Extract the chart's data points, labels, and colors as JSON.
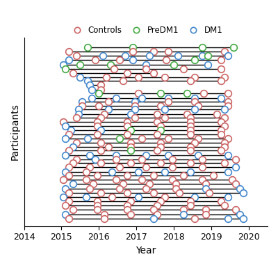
{
  "title": "",
  "xlabel": "Year",
  "ylabel": "Participants",
  "xlim": [
    2014,
    2020.5
  ],
  "xticks": [
    2014,
    2015,
    2016,
    2017,
    2018,
    2019,
    2020
  ],
  "colors": {
    "Controls": "#CC6666",
    "PreDM1": "#44AA44",
    "DM1": "#4488CC"
  },
  "participants": [
    {
      "y": 40,
      "points": [
        [
          2015.7,
          "PreDM1"
        ],
        [
          2016.9,
          "PreDM1"
        ],
        [
          2018.75,
          "PreDM1"
        ],
        [
          2019.6,
          "PreDM1"
        ]
      ]
    },
    {
      "y": 39,
      "points": [
        [
          2015.2,
          "Controls"
        ],
        [
          2016.9,
          "Controls"
        ],
        [
          2017.45,
          "Controls"
        ],
        [
          2017.85,
          "Controls"
        ],
        [
          2019.35,
          "Controls"
        ]
      ]
    },
    {
      "y": 38.2,
      "points": [
        [
          2015.4,
          "Controls"
        ],
        [
          2016.1,
          "DM1"
        ],
        [
          2016.7,
          "DM1"
        ],
        [
          2017.35,
          "DM1"
        ],
        [
          2018.1,
          "DM1"
        ],
        [
          2018.75,
          "DM1"
        ],
        [
          2018.9,
          "PreDM1"
        ],
        [
          2019.45,
          "DM1"
        ]
      ]
    },
    {
      "y": 37.3,
      "points": [
        [
          2015.2,
          "DM1"
        ],
        [
          2015.9,
          "Controls"
        ],
        [
          2016.55,
          "Controls"
        ],
        [
          2016.9,
          "DM1"
        ],
        [
          2017.8,
          "Controls"
        ],
        [
          2018.55,
          "PreDM1"
        ],
        [
          2019.25,
          "Controls"
        ]
      ]
    },
    {
      "y": 36.3,
      "points": [
        [
          2015.05,
          "DM1"
        ],
        [
          2015.5,
          "PreDM1"
        ],
        [
          2016.3,
          "PreDM1"
        ],
        [
          2017.25,
          "DM1"
        ],
        [
          2018.0,
          "PreDM1"
        ],
        [
          2018.9,
          "DM1"
        ]
      ]
    },
    {
      "y": 35.4,
      "points": [
        [
          2015.1,
          "PreDM1"
        ],
        [
          2016.4,
          "Controls"
        ],
        [
          2017.25,
          "Controls"
        ],
        [
          2018.25,
          "Controls"
        ],
        [
          2019.25,
          "Controls"
        ]
      ]
    },
    {
      "y": 34.6,
      "points": [
        [
          2015.3,
          "Controls"
        ],
        [
          2016.75,
          "Controls"
        ],
        [
          2017.45,
          "Controls"
        ]
      ]
    },
    {
      "y": 33.7,
      "points": [
        [
          2015.5,
          "DM1"
        ],
        [
          2016.2,
          "Controls"
        ],
        [
          2017.05,
          "Controls"
        ],
        [
          2017.75,
          "Controls"
        ],
        [
          2018.55,
          "Controls"
        ],
        [
          2019.35,
          "Controls"
        ]
      ]
    },
    {
      "y": 32.9,
      "points": [
        [
          2015.7,
          "DM1"
        ],
        [
          2016.65,
          "Controls"
        ],
        [
          2018.45,
          "Controls"
        ],
        [
          2019.25,
          "Controls"
        ]
      ]
    },
    {
      "y": 32.0,
      "points": [
        [
          2015.75,
          "DM1"
        ],
        [
          2016.05,
          "Controls"
        ]
      ]
    },
    {
      "y": 31.1,
      "points": [
        [
          2015.8,
          "DM1"
        ],
        [
          2016.05,
          "Controls"
        ]
      ]
    },
    {
      "y": 30.3,
      "points": [
        [
          2016.0,
          "PreDM1"
        ],
        [
          2017.05,
          "Controls"
        ],
        [
          2017.65,
          "PreDM1"
        ],
        [
          2018.35,
          "PreDM1"
        ],
        [
          2018.8,
          "Controls"
        ],
        [
          2019.45,
          "Controls"
        ]
      ]
    },
    {
      "y": 29.3,
      "points": [
        [
          2015.8,
          "DM1"
        ],
        [
          2016.45,
          "DM1"
        ],
        [
          2017.15,
          "DM1"
        ],
        [
          2017.85,
          "DM1"
        ],
        [
          2018.55,
          "DM1"
        ],
        [
          2019.25,
          "DM1"
        ]
      ]
    },
    {
      "y": 28.5,
      "points": [
        [
          2015.55,
          "DM1"
        ],
        [
          2016.25,
          "Controls"
        ],
        [
          2016.95,
          "DM1"
        ],
        [
          2017.85,
          "Controls"
        ],
        [
          2018.55,
          "Controls"
        ],
        [
          2019.45,
          "Controls"
        ]
      ]
    },
    {
      "y": 27.7,
      "points": [
        [
          2015.55,
          "Controls"
        ],
        [
          2016.0,
          "Controls"
        ],
        [
          2016.95,
          "Controls"
        ],
        [
          2017.65,
          "Controls"
        ],
        [
          2018.65,
          "Controls"
        ],
        [
          2019.45,
          "Controls"
        ]
      ]
    },
    {
      "y": 26.9,
      "points": [
        [
          2015.45,
          "DM1"
        ],
        [
          2016.25,
          "DM1"
        ],
        [
          2016.95,
          "DM1"
        ],
        [
          2017.75,
          "DM1"
        ],
        [
          2018.55,
          "DM1"
        ],
        [
          2019.35,
          "DM1"
        ]
      ]
    },
    {
      "y": 26.0,
      "points": [
        [
          2015.45,
          "DM1"
        ],
        [
          2016.15,
          "Controls"
        ],
        [
          2016.85,
          "DM1"
        ],
        [
          2017.55,
          "Controls"
        ],
        [
          2018.35,
          "Controls"
        ],
        [
          2019.15,
          "Controls"
        ]
      ]
    },
    {
      "y": 25.2,
      "points": [
        [
          2015.4,
          "Controls"
        ],
        [
          2016.05,
          "Controls"
        ],
        [
          2016.95,
          "Controls"
        ],
        [
          2017.75,
          "Controls"
        ],
        [
          2018.45,
          "Controls"
        ],
        [
          2019.35,
          "Controls"
        ]
      ]
    },
    {
      "y": 24.3,
      "points": [
        [
          2015.05,
          "Controls"
        ],
        [
          2015.95,
          "Controls"
        ],
        [
          2016.75,
          "Controls"
        ],
        [
          2017.55,
          "Controls"
        ],
        [
          2018.45,
          "Controls"
        ],
        [
          2019.25,
          "Controls"
        ]
      ]
    },
    {
      "y": 23.4,
      "points": [
        [
          2015.1,
          "DM1"
        ],
        [
          2015.95,
          "Controls"
        ],
        [
          2016.75,
          "Controls"
        ],
        [
          2017.65,
          "Controls"
        ],
        [
          2018.45,
          "Controls"
        ],
        [
          2019.35,
          "Controls"
        ]
      ]
    },
    {
      "y": 22.6,
      "points": [
        [
          2015.25,
          "DM1"
        ],
        [
          2016.05,
          "DM1"
        ],
        [
          2016.85,
          "PreDM1"
        ],
        [
          2017.65,
          "PreDM1"
        ],
        [
          2018.45,
          "Controls"
        ],
        [
          2019.25,
          "Controls"
        ]
      ]
    },
    {
      "y": 21.7,
      "points": [
        [
          2015.2,
          "Controls"
        ],
        [
          2015.95,
          "Controls"
        ],
        [
          2016.75,
          "Controls"
        ],
        [
          2017.55,
          "Controls"
        ],
        [
          2018.45,
          "Controls"
        ],
        [
          2019.25,
          "Controls"
        ]
      ]
    },
    {
      "y": 20.8,
      "points": [
        [
          2015.1,
          "DM1"
        ],
        [
          2015.7,
          "DM1"
        ],
        [
          2016.55,
          "PreDM1"
        ],
        [
          2017.15,
          "Controls"
        ],
        [
          2017.85,
          "Controls"
        ],
        [
          2018.65,
          "Controls"
        ],
        [
          2019.45,
          "Controls"
        ]
      ]
    },
    {
      "y": 20.0,
      "points": [
        [
          2015.4,
          "Controls"
        ],
        [
          2016.05,
          "Controls"
        ],
        [
          2016.85,
          "Controls"
        ],
        [
          2017.65,
          "Controls"
        ],
        [
          2018.55,
          "Controls"
        ],
        [
          2019.35,
          "Controls"
        ]
      ]
    },
    {
      "y": 19.1,
      "points": [
        [
          2015.3,
          "DM1"
        ],
        [
          2016.25,
          "Controls"
        ],
        [
          2016.85,
          "Controls"
        ],
        [
          2017.65,
          "Controls"
        ],
        [
          2018.45,
          "Controls"
        ],
        [
          2019.35,
          "Controls"
        ]
      ]
    },
    {
      "y": 18.3,
      "points": [
        [
          2015.2,
          "Controls"
        ],
        [
          2016.05,
          "Controls"
        ],
        [
          2016.85,
          "PreDM1"
        ],
        [
          2017.55,
          "Controls"
        ],
        [
          2018.45,
          "Controls"
        ],
        [
          2019.25,
          "Controls"
        ]
      ]
    },
    {
      "y": 17.4,
      "points": [
        [
          2015.1,
          "DM1"
        ],
        [
          2015.75,
          "DM1"
        ],
        [
          2016.45,
          "DM1"
        ],
        [
          2017.25,
          "DM1"
        ],
        [
          2017.85,
          "DM1"
        ],
        [
          2018.65,
          "DM1"
        ],
        [
          2019.45,
          "DM1"
        ]
      ]
    },
    {
      "y": 16.5,
      "points": [
        [
          2015.4,
          "Controls"
        ],
        [
          2015.9,
          "DM1"
        ],
        [
          2016.45,
          "Controls"
        ],
        [
          2017.15,
          "Controls"
        ],
        [
          2017.95,
          "Controls"
        ],
        [
          2018.75,
          "Controls"
        ],
        [
          2019.65,
          "Controls"
        ]
      ]
    },
    {
      "y": 15.7,
      "points": [
        [
          2015.3,
          "Controls"
        ],
        [
          2016.05,
          "Controls"
        ],
        [
          2016.85,
          "Controls"
        ],
        [
          2017.65,
          "Controls"
        ],
        [
          2018.45,
          "Controls"
        ],
        [
          2019.35,
          "Controls"
        ]
      ]
    },
    {
      "y": 14.8,
      "points": [
        [
          2015.2,
          "Controls"
        ],
        [
          2015.75,
          "Controls"
        ],
        [
          2016.55,
          "Controls"
        ],
        [
          2017.25,
          "Controls"
        ],
        [
          2017.95,
          "Controls"
        ],
        [
          2018.75,
          "Controls"
        ],
        [
          2019.65,
          "DM1"
        ]
      ]
    },
    {
      "y": 13.9,
      "points": [
        [
          2015.1,
          "DM1"
        ],
        [
          2015.65,
          "Controls"
        ],
        [
          2016.35,
          "DM1"
        ],
        [
          2017.05,
          "DM1"
        ],
        [
          2017.75,
          "DM1"
        ],
        [
          2018.45,
          "DM1"
        ],
        [
          2019.45,
          "DM1"
        ]
      ]
    },
    {
      "y": 13.1,
      "points": [
        [
          2015.2,
          "Controls"
        ],
        [
          2015.95,
          "Controls"
        ],
        [
          2016.75,
          "Controls"
        ],
        [
          2017.45,
          "Controls"
        ],
        [
          2018.25,
          "Controls"
        ],
        [
          2019.05,
          "Controls"
        ]
      ]
    },
    {
      "y": 12.2,
      "points": [
        [
          2015.05,
          "Controls"
        ],
        [
          2015.65,
          "Controls"
        ],
        [
          2016.45,
          "Controls"
        ],
        [
          2017.15,
          "Controls"
        ],
        [
          2017.95,
          "Controls"
        ],
        [
          2018.75,
          "Controls"
        ],
        [
          2019.55,
          "Controls"
        ]
      ]
    },
    {
      "y": 11.3,
      "points": [
        [
          2015.3,
          "DM1"
        ],
        [
          2015.85,
          "Controls"
        ],
        [
          2016.65,
          "Controls"
        ],
        [
          2017.35,
          "Controls"
        ],
        [
          2018.05,
          "Controls"
        ],
        [
          2018.85,
          "Controls"
        ],
        [
          2019.65,
          "Controls"
        ]
      ]
    },
    {
      "y": 10.4,
      "points": [
        [
          2015.1,
          "DM1"
        ],
        [
          2015.75,
          "Controls"
        ],
        [
          2016.55,
          "Controls"
        ],
        [
          2017.25,
          "Controls"
        ],
        [
          2018.05,
          "Controls"
        ],
        [
          2018.85,
          "DM1"
        ],
        [
          2019.75,
          "DM1"
        ]
      ]
    },
    {
      "y": 9.5,
      "points": [
        [
          2015.2,
          "Controls"
        ],
        [
          2016.05,
          "Controls"
        ],
        [
          2016.75,
          "Controls"
        ],
        [
          2017.45,
          "Controls"
        ],
        [
          2018.15,
          "Controls"
        ],
        [
          2018.95,
          "Controls"
        ],
        [
          2019.85,
          "DM1"
        ]
      ]
    },
    {
      "y": 8.6,
      "points": [
        [
          2015.05,
          "DM1"
        ],
        [
          2015.65,
          "DM1"
        ],
        [
          2016.35,
          "Controls"
        ],
        [
          2017.05,
          "DM1"
        ],
        [
          2017.75,
          "Controls"
        ],
        [
          2018.55,
          "DM1"
        ],
        [
          2019.45,
          "DM1"
        ]
      ]
    },
    {
      "y": 7.7,
      "points": [
        [
          2015.2,
          "Controls"
        ],
        [
          2015.95,
          "Controls"
        ],
        [
          2016.85,
          "Controls"
        ],
        [
          2017.65,
          "Controls"
        ],
        [
          2018.45,
          "Controls"
        ],
        [
          2019.25,
          "Controls"
        ]
      ]
    },
    {
      "y": 6.8,
      "points": [
        [
          2015.1,
          "Controls"
        ],
        [
          2015.95,
          "Controls"
        ],
        [
          2016.75,
          "Controls"
        ],
        [
          2017.55,
          "Controls"
        ],
        [
          2018.45,
          "Controls"
        ],
        [
          2019.35,
          "Controls"
        ]
      ]
    },
    {
      "y": 5.9,
      "points": [
        [
          2015.3,
          "Controls"
        ],
        [
          2015.95,
          "Controls"
        ],
        [
          2016.75,
          "Controls"
        ],
        [
          2017.45,
          "Controls"
        ],
        [
          2018.25,
          "Controls"
        ],
        [
          2018.85,
          "Controls"
        ],
        [
          2019.65,
          "Controls"
        ]
      ]
    },
    {
      "y": 5.0,
      "points": [
        [
          2015.1,
          "DM1"
        ],
        [
          2016.15,
          "Controls"
        ],
        [
          2016.85,
          "Controls"
        ],
        [
          2017.55,
          "Controls"
        ],
        [
          2018.25,
          "DM1"
        ],
        [
          2018.85,
          "Controls"
        ],
        [
          2019.75,
          "DM1"
        ]
      ]
    },
    {
      "y": 4.0,
      "points": [
        [
          2015.2,
          "Controls"
        ],
        [
          2016.15,
          "Controls"
        ],
        [
          2017.45,
          "DM1"
        ],
        [
          2018.55,
          "Controls"
        ],
        [
          2019.45,
          "DM1"
        ],
        [
          2019.85,
          "DM1"
        ]
      ]
    }
  ]
}
